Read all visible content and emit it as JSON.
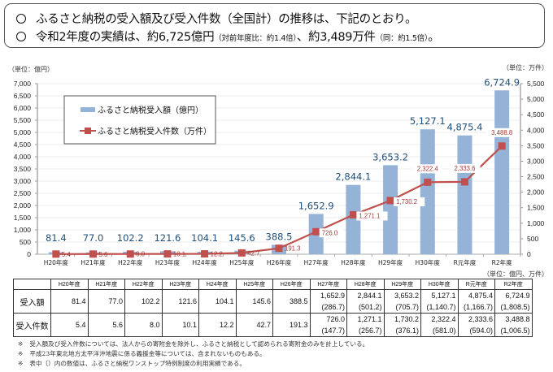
{
  "summary": {
    "line1": "ふるさと納税の受入額及び受入件数（全国計）の推移は、下記のとおり。",
    "line2_main_a": "令和2年度の実績は、約6,725億円",
    "line2_small_a": "（対前年度比：約1.4倍）",
    "line2_main_b": "、約3,489万件",
    "line2_small_b": "（同：約1.5倍）",
    "line2_end": "。"
  },
  "units": {
    "left": "（単位：億円）",
    "right": "（単位：万件）",
    "table": "（単位：億円、万件）"
  },
  "colors": {
    "bar": "#95b3d7",
    "bar_label": "#1f4e79",
    "line": "#c0504d",
    "line_label": "#a23a37"
  },
  "chart_data": {
    "type": "bar+line",
    "categories": [
      "H20年度",
      "H21年度",
      "H22年度",
      "H23年度",
      "H24年度",
      "H25年度",
      "H26年度",
      "H27年度",
      "H28年度",
      "H29年度",
      "H30年度",
      "R元年度",
      "R2年度"
    ],
    "series": [
      {
        "name": "ふるさと納税受入額（億円）",
        "type": "bar",
        "axis": "left",
        "values": [
          81.4,
          77.0,
          102.2,
          121.6,
          104.1,
          145.6,
          388.5,
          1652.9,
          2844.1,
          3653.2,
          5127.1,
          4875.4,
          6724.9
        ],
        "labels": [
          "81.4",
          "77.0",
          "102.2",
          "121.6",
          "104.1",
          "145.6",
          "388.5",
          "1,652.9",
          "2,844.1",
          "3,653.2",
          "5,127.1",
          "4,875.4",
          "6,724.9"
        ]
      },
      {
        "name": "ふるさと納税受入件数（万件）",
        "type": "line",
        "axis": "right",
        "values": [
          5.4,
          5.6,
          8.0,
          10.1,
          12.2,
          42.7,
          191.3,
          726.0,
          1271.1,
          1730.2,
          2322.4,
          2333.6,
          3488.8
        ],
        "labels": [
          "5.4",
          "5.6",
          "8.0",
          "10.1",
          "12.2",
          "42.7",
          "191.3",
          "726.0",
          "1,271.1",
          "1,730.2",
          "2,322.4",
          "2,333.6",
          "3,488.8"
        ]
      }
    ],
    "left_axis": {
      "min": 0,
      "max": 7000,
      "step": 500,
      "tick_labels": [
        "0",
        "500",
        "1,000",
        "1,500",
        "2,000",
        "2,500",
        "3,000",
        "3,500",
        "4,000",
        "4,500",
        "5,000",
        "5,500",
        "6,000",
        "6,500",
        "7,000"
      ]
    },
    "right_axis": {
      "min": 0,
      "max": 5500,
      "step": 500,
      "tick_labels": [
        "0",
        "500",
        "1,000",
        "1,500",
        "2,000",
        "2,500",
        "3,000",
        "3,500",
        "4,000",
        "4,500",
        "5,000",
        "5,500"
      ]
    },
    "legend": {
      "position": "top-left",
      "entries": [
        "ふるさと納税受入額（億円）",
        "ふるさと納税受入件数（万件）"
      ]
    },
    "grid": true
  },
  "table": {
    "headers": [
      "H20年度",
      "H21年度",
      "H22年度",
      "H23年度",
      "H24年度",
      "H25年度",
      "H26年度",
      "H27年度",
      "H28年度",
      "H29年度",
      "H30年度",
      "R元年度",
      "R2年度"
    ],
    "rows": [
      {
        "label": "受入額",
        "values": [
          "81.4",
          "77.0",
          "102.2",
          "121.6",
          "104.1",
          "145.6",
          "388.5",
          "1,652.9",
          "2,844.1",
          "3,653.2",
          "5,127.1",
          "4,875.4",
          "6,724.9"
        ],
        "sub": [
          "",
          "",
          "",
          "",
          "",
          "",
          "",
          "(286.7)",
          "(501.2)",
          "(705.7)",
          "(1,140.7)",
          "(1,166.7)",
          "(1,808.5)"
        ]
      },
      {
        "label": "受入件数",
        "values": [
          "5.4",
          "5.6",
          "8.0",
          "10.1",
          "12.2",
          "42.7",
          "191.3",
          "726.0",
          "1,271.1",
          "1,730.2",
          "2,322.4",
          "2,333.6",
          "3,488.8"
        ],
        "sub": [
          "",
          "",
          "",
          "",
          "",
          "",
          "",
          "(147.7)",
          "(256.7)",
          "(376.1)",
          "(581.0)",
          "(594.0)",
          "(1,006.5)"
        ]
      }
    ]
  },
  "notes": [
    {
      "mark": "※",
      "text": "受入額及び受入件数については、法人からの寄附金を除外し、ふるさと納税として認められる寄附金のみを計上している。"
    },
    {
      "mark": "※",
      "text": "平成23年東北地方太平洋沖地震に係る義援金等については、含まれないものもある。"
    },
    {
      "mark": "※",
      "text": "表中（）内の数値は、ふるさと納税ワンストップ特例制度の利用実績である。"
    }
  ]
}
